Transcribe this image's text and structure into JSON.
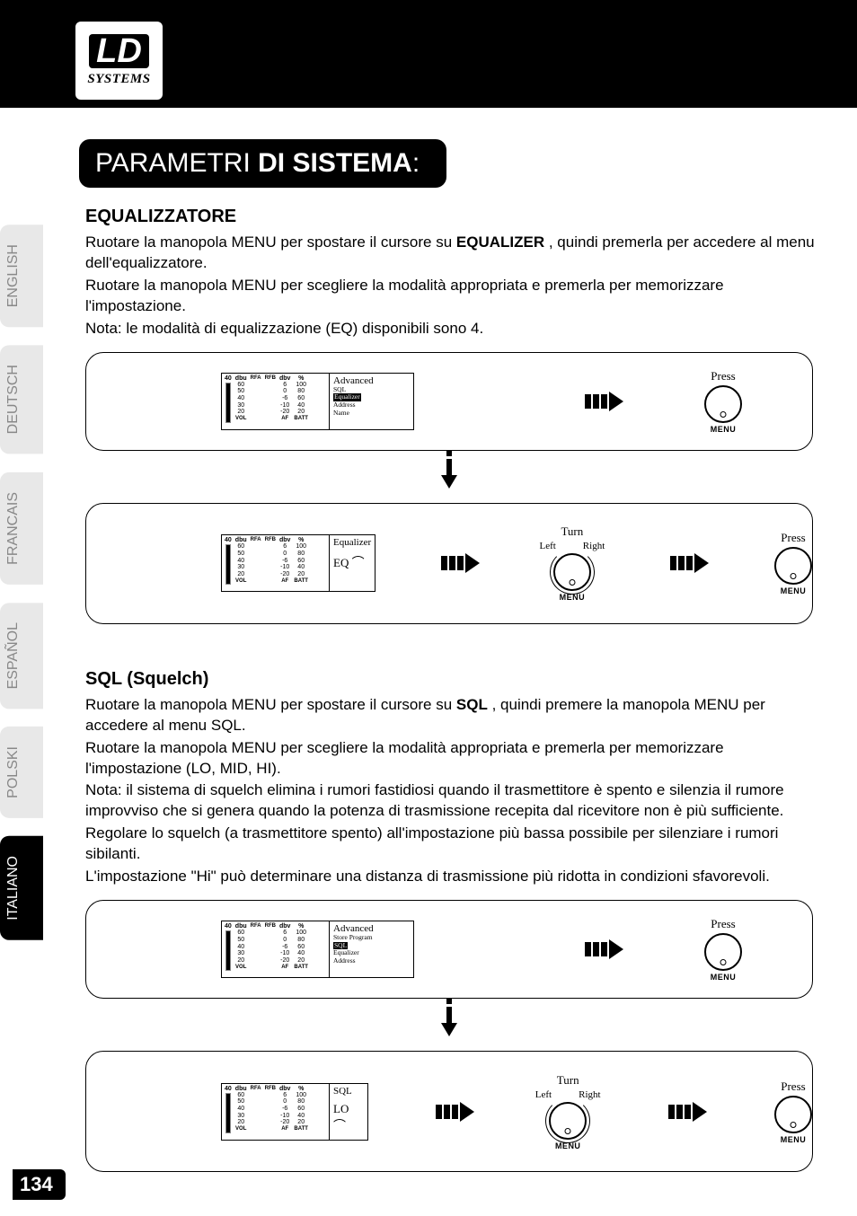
{
  "logo": {
    "top": "LD",
    "bottom": "SYSTEMS"
  },
  "title": {
    "light": "PARAMETRI ",
    "bold": "DI SISTEMA",
    "suffix": ":"
  },
  "tabs": [
    "ENGLISH",
    "DEUTSCH",
    "FRANCAIS",
    "ESPAÑOL",
    "POLSKI",
    "ITALIANO"
  ],
  "active_tab_index": 5,
  "page_number": "134",
  "eq": {
    "heading": "EQUALIZZATORE",
    "p1_a": "Ruotare la manopola MENU per spostare il cursore su ",
    "p1_b": "EQUALIZER",
    "p1_c": " , quindi premerla per accedere al menu dell'equalizzatore.",
    "p2": "Ruotare la manopola MENU per scegliere la modalità appropriata e premerla per memorizzare l'impostazione.",
    "p3": "Nota: le modalità di equalizzazione (EQ) disponibili sono 4.",
    "lcd1": {
      "title": "Advanced",
      "items": [
        "SQL",
        "Equalizer",
        "Address",
        "Name"
      ],
      "selected_index": 1
    },
    "lcd2": {
      "title": "Equalizer",
      "big": "EQ"
    }
  },
  "sql": {
    "heading": "SQL (Squelch)",
    "p1_a": "Ruotare la manopola MENU per spostare il cursore su ",
    "p1_b": "SQL",
    "p1_c": " , quindi premere la manopola MENU per accedere al menu SQL.",
    "p2": "Ruotare la manopola MENU per scegliere la modalità appropriata e premerla per memorizzare l'impostazione (LO, MID, HI).",
    "p3": "Nota: il sistema di squelch elimina i rumori fastidiosi quando il trasmettitore è spento e silenzia il rumore improvviso che si genera quando la potenza di trasmissione recepita dal ricevitore non è più sufficiente.",
    "p4": "Regolare lo squelch (a trasmettitore spento) all'impostazione più bassa possibile per silenziare i rumori sibilanti.",
    "p5": "L'impostazione \"Hi\" può determinare una distanza di trasmissione più ridotta in condizioni sfavorevoli.",
    "lcd1": {
      "title": "Advanced",
      "items": [
        "Store Program",
        "SQL",
        "Equalizer",
        "Address"
      ],
      "selected_index": 1
    },
    "lcd2": {
      "title": "SQL",
      "big": "LO"
    }
  },
  "knob": {
    "press": "Press",
    "turn": "Turn",
    "left": "Left",
    "right": "Right",
    "menu": "MENU"
  },
  "meters": {
    "ch": "40",
    "cols": [
      {
        "lbl": "dbu",
        "vals": [
          "60",
          "50",
          "40",
          "30",
          "20"
        ],
        "foot": "VOL"
      },
      {
        "lbl": "",
        "vals": [
          "",
          "",
          "",
          "",
          ""
        ],
        "foot": "RFA"
      },
      {
        "lbl": "",
        "vals": [
          "",
          "",
          "",
          "",
          ""
        ],
        "foot": "RFB"
      },
      {
        "lbl": "dbv",
        "vals": [
          "6",
          "0",
          "-6",
          "-10",
          "-20"
        ],
        "foot": "AF"
      },
      {
        "lbl": "%",
        "vals": [
          "100",
          "80",
          "60",
          "40",
          "20"
        ],
        "foot": "BATT"
      }
    ]
  },
  "colors": {
    "bg": "#ffffff",
    "ink": "#000000",
    "tab_inactive_bg": "#e8e8e8",
    "tab_inactive_fg": "#888888"
  }
}
